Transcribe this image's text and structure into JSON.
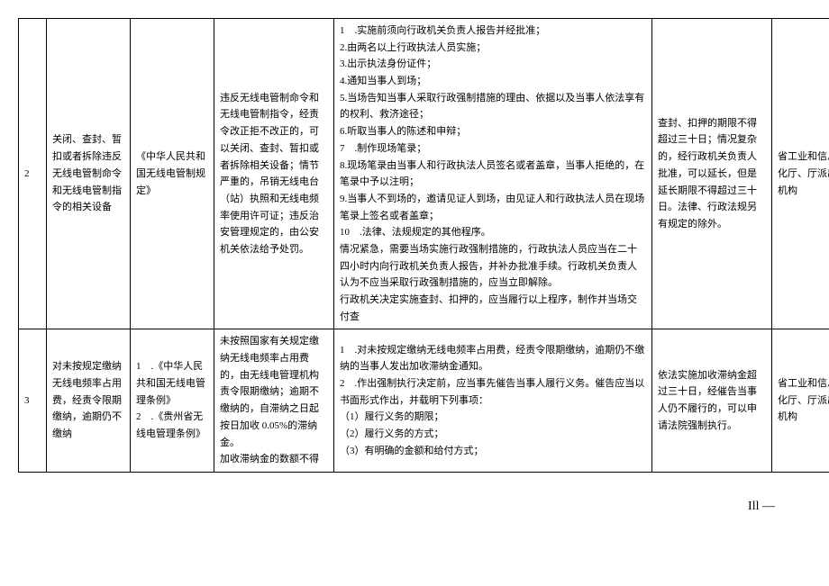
{
  "table": {
    "rows": [
      {
        "num": "2",
        "name": "关闭、查封、暂扣或者拆除违反无线电管制命令和无线电管制指令的相关设备",
        "basis": "《中华人民共和国无线电管制规定》",
        "condition": "违反无线电管制命令和无线电管制指令，经责令改正拒不改正的，可以关闭、查封、暂扣或者拆除相关设备；情节严重的，吊销无线电台（站）执照和无线电频率使用许可证；违反治安管理规定的，由公安机关依法给予处罚。",
        "procedure": "1　.实施前须向行政机关负责人报告并经批准；\n2.由两名以上行政执法人员实施；\n3.出示执法身份证件；\n4.通知当事人到场；\n5.当场告知当事人采取行政强制措施的理由、依据以及当事人依法享有的权利、救济途径；\n6.听取当事人的陈述和申辩；\n7　.制作现场笔录；\n8.现场笔录由当事人和行政执法人员签名或者盖章，当事人拒绝的，在笔录中予以注明；\n9.当事人不到场的，邀请见证人到场，由见证人和行政执法人员在现场笔录上签名或者盖章；\n10　.法律、法规规定的其他程序。\n情况紧急，需要当场实施行政强制措施的，行政执法人员应当在二十四小时内向行政机关负责人报告，并补办批准手续。行政机关负责人认为不应当采取行政强制措施的，应当立即解除。\n行政机关决定实施查封、扣押的，应当履行以上程序，制作并当场交付查",
        "responsibility": "查封、扣押的期限不得超过三十日；情况复杂的，经行政机关负责人批准，可以延长，但是延长期限不得超过三十日。法律、行政法规另有规定的除外。",
        "dept": "省工业和信息化厅、厅派出机构"
      },
      {
        "num": "3",
        "name": "对未按规定缴纳无线电频率占用费，经责令限期缴纳，逾期仍不缴纳",
        "basis": "1　.《中华人民共和国无线电管理条例》\n2　.《贵州省无线电管理条例》",
        "condition": "未按照国家有关规定缴纳无线电频率占用费的，由无线电管理机构责令限期缴纳；逾期不缴纳的，自滞纳之日起按日加收 0.05%的滞纳金。\n加收滞纳金的数额不得",
        "procedure": "1　.对未按规定缴纳无线电频率占用费，经责令限期缴纳，逾期仍不缴纳的当事人发出加收滞纳金通知。\n2　.作出强制执行决定前，应当事先催告当事人履行义务。催告应当以书面形式作出，并载明下列事项：\n（1）履行义务的期限；\n（2）履行义务的方式；\n（3）有明确的金额和给付方式；",
        "responsibility": "依法实施加收滞纳金超过三十日，经催告当事人仍不履行的，可以申请法院强制执行。",
        "dept": "省工业和信息化厅、厅派出机构"
      }
    ]
  },
  "pageNumber": "Ill —",
  "style": {
    "background_color": "#ffffff",
    "border_color": "#000000",
    "text_color": "#000000",
    "font_family": "SimSun",
    "body_fontsize": 11,
    "line_height": 1.7
  }
}
